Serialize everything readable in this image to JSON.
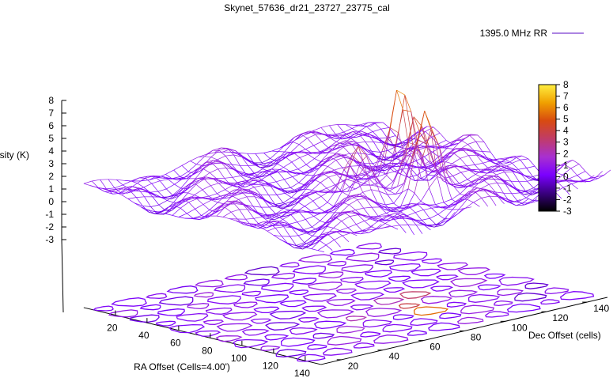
{
  "chart_data": {
    "type": "surface3d",
    "title": "Skynet_57636_dr21_23727_23775_cal",
    "legend": {
      "label": "1395.0 MHz RR",
      "placement": "top-right"
    },
    "xlabel": "RA Offset (Cells=4.00')",
    "ylabel": "Dec Offset (cells)",
    "zlabel": "Intensity (K)",
    "xlim": [
      0,
      150
    ],
    "ylim": [
      10,
      150
    ],
    "zlim": [
      -3,
      8
    ],
    "x_ticks": [
      "20",
      "40",
      "60",
      "80",
      "100",
      "120",
      "140"
    ],
    "y_ticks": [
      "20",
      "40",
      "60",
      "80",
      "100",
      "120",
      "140"
    ],
    "z_ticks": [
      "8",
      "7",
      "6",
      "5",
      "4",
      "3",
      "2",
      "1",
      "0",
      "-1",
      "-2",
      "-3"
    ],
    "colorbar": {
      "range": [
        -3,
        8
      ],
      "ticks": [
        "8",
        "7",
        "6",
        "5",
        "4",
        "3",
        "2",
        "1",
        "0",
        "-1",
        "-2",
        "-3"
      ],
      "colors": [
        "#000000",
        "#3a0080",
        "#7a00ff",
        "#a830d0",
        "#c03c68",
        "#d84a10",
        "#f0a000",
        "#ffee40"
      ]
    },
    "grid": false,
    "sources": [
      {
        "x": 85,
        "y": 100,
        "peak": 6.5
      },
      {
        "x": 100,
        "y": 95,
        "peak": 5.5
      },
      {
        "x": 113,
        "y": 90,
        "peak": 5.2
      },
      {
        "x": 95,
        "y": 70,
        "peak": 2.5
      }
    ],
    "baseline_level": 0.5
  }
}
